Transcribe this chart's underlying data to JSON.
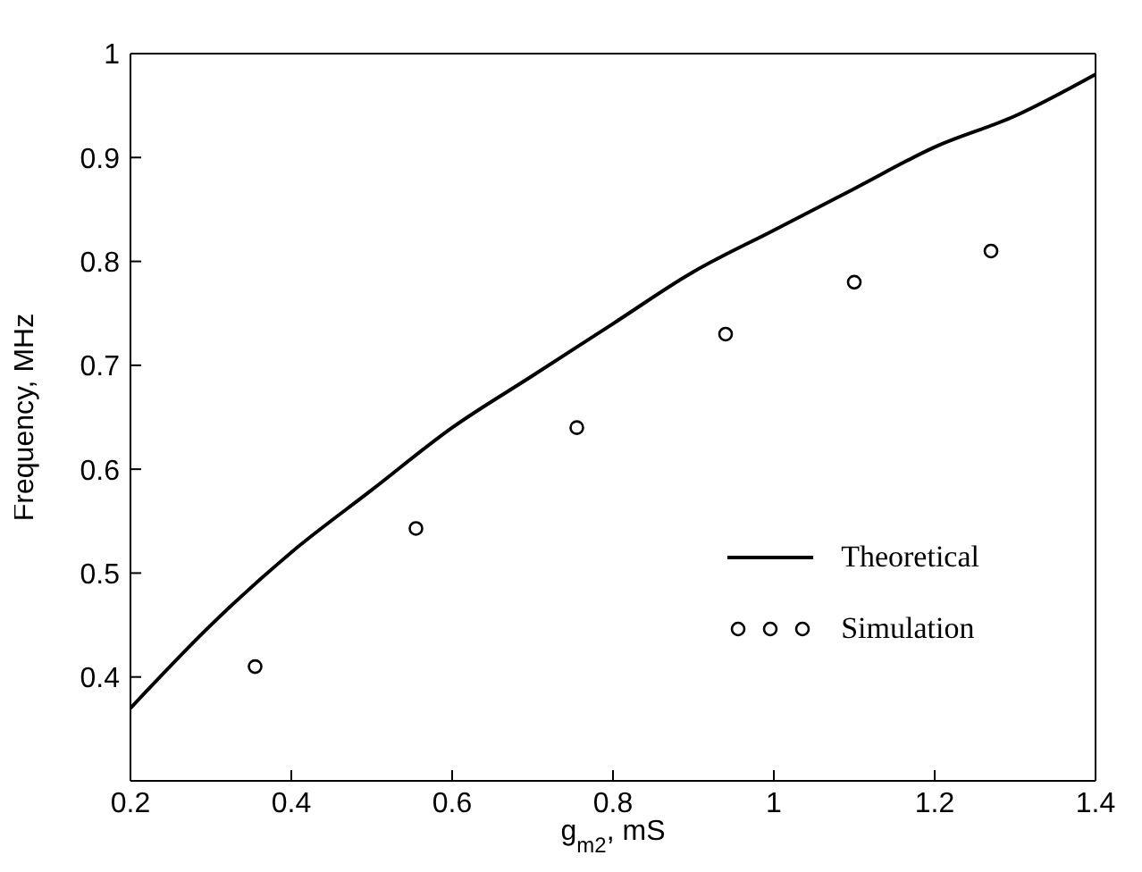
{
  "chart_data": {
    "type": "line",
    "xlabel": "g$_{m2}$, mS",
    "ylabel": "Frequency, MHz",
    "xlim": [
      0.2,
      1.4
    ],
    "xticks": [
      0.2,
      0.4,
      0.6,
      0.8,
      1,
      1.2,
      1.4
    ],
    "ylim": [
      0.3,
      1
    ],
    "yticks": [
      0.4,
      0.5,
      0.6,
      0.7,
      0.8,
      0.9,
      1
    ],
    "grid": false,
    "legend": "bottom right",
    "series": [
      {
        "name": "Theoretical",
        "color": "#000000",
        "marker": "none",
        "line_style": "solid",
        "x": [
          0.2,
          0.3,
          0.4,
          0.5,
          0.6,
          0.7,
          0.8,
          0.9,
          1.0,
          1.1,
          1.2,
          1.3,
          1.4
        ],
        "values": [
          0.37,
          0.45,
          0.52,
          0.58,
          0.64,
          0.69,
          0.74,
          0.79,
          0.83,
          0.87,
          0.91,
          0.94,
          0.98
        ]
      },
      {
        "name": "Simulation",
        "type": "scatter",
        "color": "#000000",
        "marker": "circle",
        "x": [
          0.355,
          0.555,
          0.755,
          0.94,
          1.1,
          1.27
        ],
        "values": [
          0.41,
          0.543,
          0.64,
          0.73,
          0.78,
          0.81
        ]
      }
    ]
  }
}
